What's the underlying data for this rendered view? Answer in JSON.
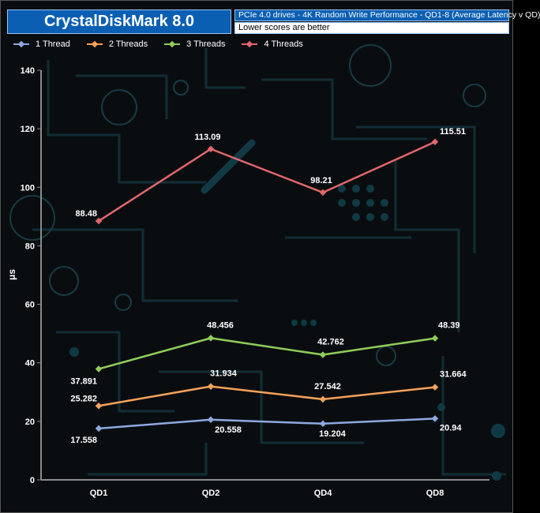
{
  "header": {
    "title": "CrystalDiskMark 8.0",
    "subtitle": "PCIe 4.0 drives - 4K Random Write Performance - QD1-8 (Average Latency v QD)",
    "note": "Lower scores are better"
  },
  "chart_data": {
    "type": "line",
    "title": "CrystalDiskMark 8.0",
    "subtitle": "PCIe 4.0 drives - 4K Random Write Performance - QD1-8 (Average Latency v QD)",
    "xlabel": "",
    "ylabel": "μs",
    "categories": [
      "QD1",
      "QD2",
      "QD4",
      "QD8"
    ],
    "ylim": [
      0,
      140
    ],
    "yticks": [
      0,
      20,
      40,
      60,
      80,
      100,
      120,
      140
    ],
    "grid": false,
    "legend_position": "top-left",
    "series": [
      {
        "name": "1 Thread",
        "color": "#8ea9e0",
        "values": [
          17.558,
          20.558,
          19.204,
          20.94
        ],
        "labels": [
          "17.558",
          "20.558",
          "19.204",
          "20.94"
        ]
      },
      {
        "name": "2 Threads",
        "color": "#f5a25a",
        "values": [
          25.282,
          31.934,
          27.542,
          31.664
        ],
        "labels": [
          "25.282",
          "31.934",
          "27.542",
          "31.664"
        ]
      },
      {
        "name": "3 Threads",
        "color": "#8fce5a",
        "values": [
          37.891,
          48.456,
          42.762,
          48.39
        ],
        "labels": [
          "37.891",
          "48.456",
          "42.762",
          "48.39"
        ]
      },
      {
        "name": "4 Threads",
        "color": "#e0676b",
        "values": [
          88.48,
          113.09,
          98.21,
          115.51
        ],
        "labels": [
          "88.48",
          "113.09",
          "98.21",
          "115.51"
        ]
      }
    ]
  }
}
